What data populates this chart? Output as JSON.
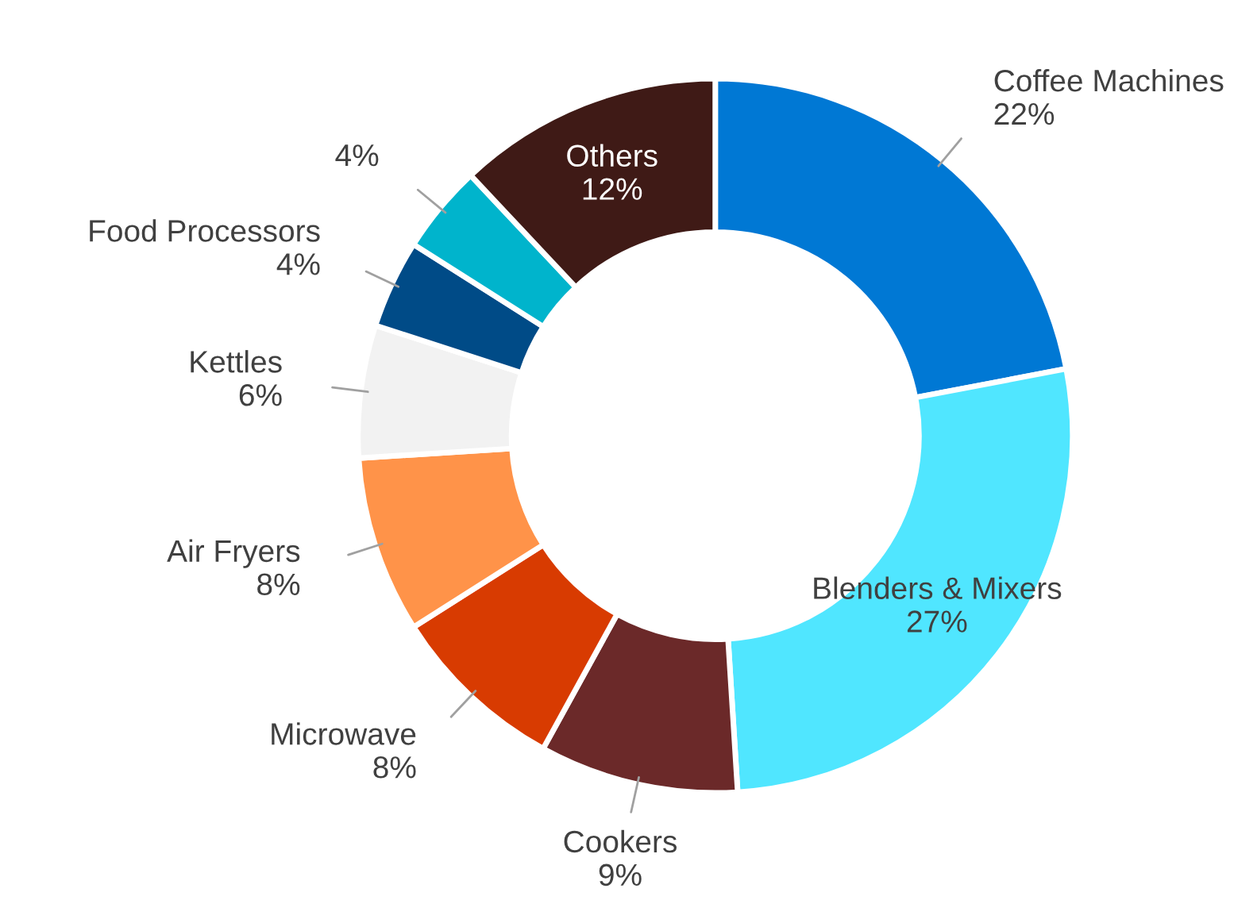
{
  "chart_data": {
    "type": "donut",
    "categories": [
      "Coffee Machines",
      "Blenders & Mixers",
      "Cookers",
      "Microwave",
      "Air Fryers",
      "Kettles",
      "Food Processors",
      null,
      "Others"
    ],
    "values": [
      22,
      27,
      9,
      8,
      8,
      6,
      4,
      4,
      12
    ],
    "colors": [
      "#0078d4",
      "#50e6ff",
      "#6b2929",
      "#d83b01",
      "#ff9349",
      "#f2f2f2",
      "#004b87",
      "#00b4cc",
      "#3f1a16"
    ],
    "value_labels": [
      "22%",
      "27%",
      "9%",
      "8%",
      "8%",
      "6%",
      "4%",
      "4%",
      "12%"
    ],
    "legend": false
  }
}
